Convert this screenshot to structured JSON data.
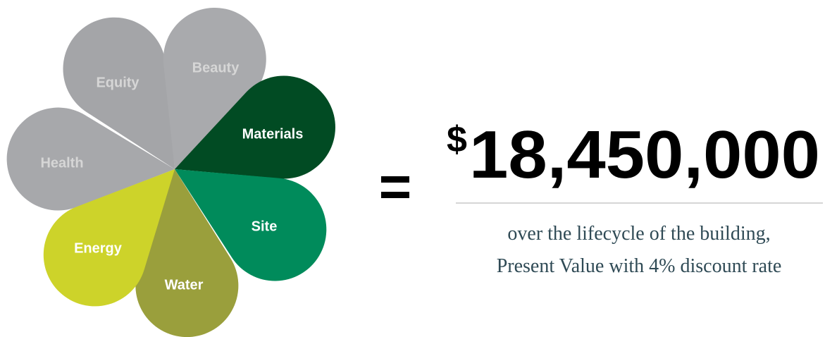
{
  "petals": [
    {
      "label": "Health"
    },
    {
      "label": "Equity"
    },
    {
      "label": "Beauty"
    },
    {
      "label": "Materials"
    },
    {
      "label": "Site"
    },
    {
      "label": "Water"
    },
    {
      "label": "Energy"
    }
  ],
  "result": {
    "currency": "$",
    "amount": "18,450,000",
    "caption": [
      "over the lifecycle of the building,",
      "Present Value with 4% discount rate"
    ]
  }
}
